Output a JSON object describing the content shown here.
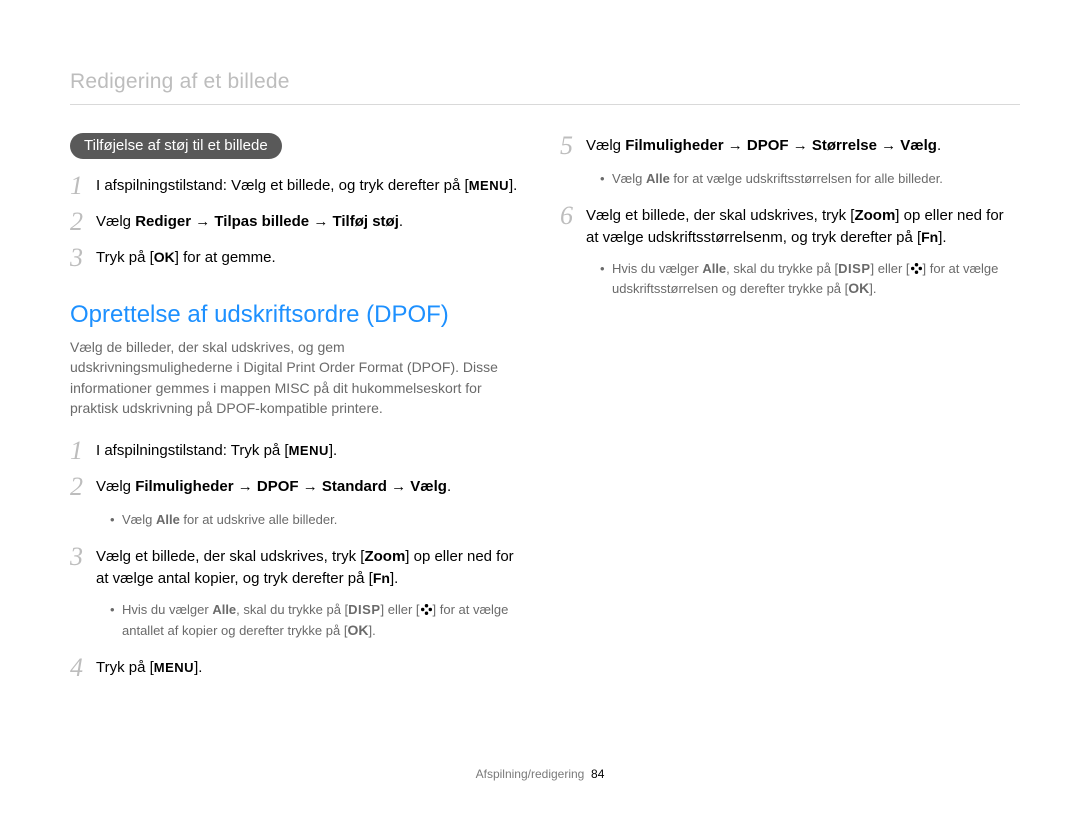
{
  "breadcrumb": "Redigering af et billede",
  "pill_noise": "Tilføjelse af støj til et billede",
  "noise_steps": [
    {
      "num": "1",
      "text_parts": [
        {
          "t": "I afspilningstilstand: Vælg et billede, og tryk derefter på ["
        },
        {
          "b": "MENU",
          "cls": "btn-menu"
        },
        {
          "t": "]."
        }
      ]
    },
    {
      "num": "2",
      "text_parts": [
        {
          "t": "Vælg "
        },
        {
          "b": "Rediger"
        },
        {
          "t": " → "
        },
        {
          "b": "Tilpas billede"
        },
        {
          "t": " → "
        },
        {
          "b": "Tilføj støj"
        },
        {
          "t": "."
        }
      ]
    },
    {
      "num": "3",
      "text_parts": [
        {
          "t": "Tryk på ["
        },
        {
          "b": "OK",
          "cls": "btn-ok"
        },
        {
          "t": "] for at gemme."
        }
      ]
    }
  ],
  "section_title": "Oprettelse af udskriftsordre (DPOF)",
  "section_intro": "Vælg de billeder, der skal udskrives, og gem udskrivningsmulighederne i Digital Print Order Format (DPOF). Disse informationer gemmes i mappen MISC på dit hukommelseskort for praktisk udskrivning på DPOF-kompatible printere.",
  "dpof_left_steps": [
    {
      "num": "1",
      "text_parts": [
        {
          "t": "I afspilningstilstand: Tryk på ["
        },
        {
          "b": "MENU",
          "cls": "btn-menu"
        },
        {
          "t": "]."
        }
      ]
    },
    {
      "num": "2",
      "text_parts": [
        {
          "t": "Vælg "
        },
        {
          "b": "Filmuligheder"
        },
        {
          "t": " → "
        },
        {
          "b": "DPOF"
        },
        {
          "t": " → "
        },
        {
          "b": "Standard"
        },
        {
          "t": " → "
        },
        {
          "b": "Vælg"
        },
        {
          "t": "."
        }
      ],
      "notes": [
        [
          {
            "t": "Vælg "
          },
          {
            "b": "Alle"
          },
          {
            "t": " for at udskrive alle billeder."
          }
        ]
      ]
    },
    {
      "num": "3",
      "text_parts": [
        {
          "t": "Vælg et billede, der skal udskrives, tryk ["
        },
        {
          "b": "Zoom"
        },
        {
          "t": "] op eller ned for at vælge antal kopier, og tryk derefter på ["
        },
        {
          "b": "Fn",
          "cls": "btn-fn"
        },
        {
          "t": "]."
        }
      ],
      "notes": [
        [
          {
            "t": "Hvis du vælger "
          },
          {
            "b": "Alle"
          },
          {
            "t": ", skal du trykke på ["
          },
          {
            "b": "DISP",
            "cls": "btn-disp"
          },
          {
            "t": "] eller ["
          },
          {
            "icon": "flower"
          },
          {
            "t": "] for at vælge antallet af kopier og derefter trykke på ["
          },
          {
            "b": "OK",
            "cls": "btn-ok"
          },
          {
            "t": "]."
          }
        ]
      ]
    },
    {
      "num": "4",
      "text_parts": [
        {
          "t": "Tryk på ["
        },
        {
          "b": "MENU",
          "cls": "btn-menu"
        },
        {
          "t": "]."
        }
      ]
    }
  ],
  "dpof_right_steps": [
    {
      "num": "5",
      "text_parts": [
        {
          "t": "Vælg "
        },
        {
          "b": "Filmuligheder"
        },
        {
          "t": " → "
        },
        {
          "b": "DPOF"
        },
        {
          "t": " → "
        },
        {
          "b": "Størrelse"
        },
        {
          "t": " → "
        },
        {
          "b": "Vælg"
        },
        {
          "t": "."
        }
      ],
      "notes": [
        [
          {
            "t": "Vælg "
          },
          {
            "b": "Alle"
          },
          {
            "t": " for at vælge udskriftsstørrelsen for alle billeder."
          }
        ]
      ]
    },
    {
      "num": "6",
      "text_parts": [
        {
          "t": "Vælg et billede, der skal udskrives, tryk ["
        },
        {
          "b": "Zoom"
        },
        {
          "t": "] op eller ned for at vælge udskriftsstørrelsenm, og tryk derefter på ["
        },
        {
          "b": "Fn",
          "cls": "btn-fn"
        },
        {
          "t": "]."
        }
      ],
      "notes": [
        [
          {
            "t": "Hvis du vælger "
          },
          {
            "b": "Alle"
          },
          {
            "t": ", skal du trykke på ["
          },
          {
            "b": "DISP",
            "cls": "btn-disp"
          },
          {
            "t": "] eller ["
          },
          {
            "icon": "flower"
          },
          {
            "t": "] for at vælge udskriftsstørrelsen og derefter trykke på ["
          },
          {
            "b": "OK",
            "cls": "btn-ok"
          },
          {
            "t": "]."
          }
        ]
      ]
    }
  ],
  "footer_label": "Afspilning/redigering",
  "footer_page": "84",
  "colors": {
    "accent": "#1d90ff",
    "muted": "#bdbdbd",
    "note": "#6a6a6a",
    "pill_bg": "#595959",
    "divider": "#d9d9d9"
  }
}
